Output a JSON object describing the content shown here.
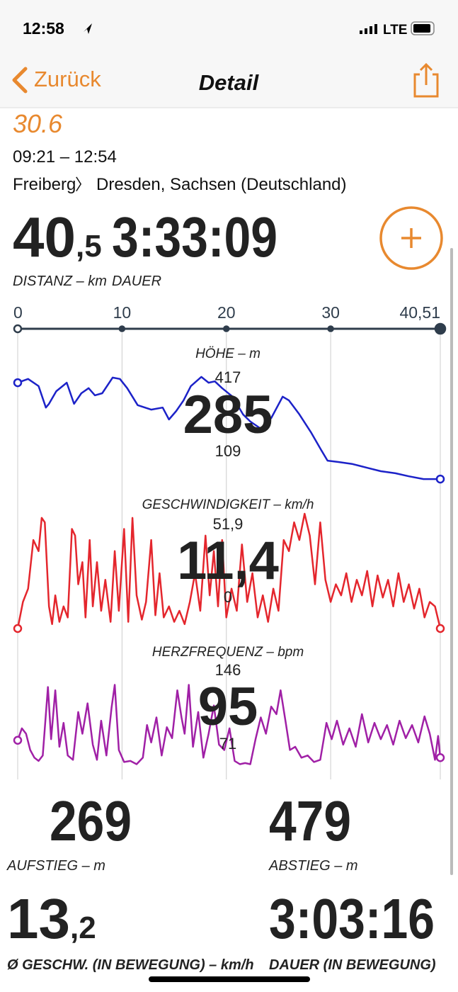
{
  "status_bar": {
    "time": "12:58",
    "network": "LTE"
  },
  "nav": {
    "back": "Zurück",
    "title": "Detail"
  },
  "header": {
    "date": "30.6",
    "time_range": "09:21 – 12:54",
    "route_from": "Freiberg",
    "route_separator": "〉",
    "route_to": "Dresden, Sachsen (Deutschland)"
  },
  "summary": {
    "distance": {
      "value": "40,5",
      "label": "DISTANZ – km"
    },
    "duration": {
      "value": "3:33:09",
      "label": "DAUER"
    }
  },
  "chart_axis": {
    "xlim": [
      0,
      40.51
    ],
    "xticks": [
      0,
      10,
      20,
      30,
      {
        "value": 40.51,
        "label": "40,51"
      }
    ]
  },
  "chart_data": [
    {
      "type": "line",
      "title": "HÖHE – m",
      "color": "#1c22c8",
      "ylim": [
        109,
        417
      ],
      "max": 417,
      "avg": 285,
      "min": 109,
      "x": [
        0,
        1.0,
        2.0,
        2.7,
        3.0,
        3.7,
        4.7,
        5.4,
        6.1,
        6.8,
        7.4,
        8.1,
        9.1,
        9.8,
        10.5,
        11.5,
        12.2,
        12.8,
        13.9,
        14.5,
        15.2,
        15.9,
        16.6,
        17.6,
        18.3,
        18.9,
        19.6,
        20.6,
        21.6,
        22.3,
        23.3,
        24.3,
        25.4,
        26.0,
        27.0,
        28.1,
        29.1,
        29.7,
        30.8,
        32.1,
        33.5,
        34.8,
        36.2,
        37.5,
        38.9,
        40.51
      ],
      "values": [
        396,
        407,
        386,
        323,
        334,
        371,
        396,
        334,
        365,
        380,
        359,
        365,
        411,
        407,
        380,
        330,
        323,
        317,
        323,
        288,
        313,
        344,
        386,
        413,
        396,
        400,
        380,
        355,
        303,
        282,
        261,
        292,
        355,
        344,
        303,
        251,
        198,
        167,
        163,
        157,
        146,
        136,
        130,
        121,
        113,
        113
      ]
    },
    {
      "type": "line",
      "title": "GESCHWINDIGKEIT – km/h",
      "color": "#e4262d",
      "ylim": [
        0,
        51.9
      ],
      "max": {
        "value": 51.9,
        "label": "51,9"
      },
      "avg": {
        "value": 11.4,
        "label": "11,4"
      },
      "min": 0,
      "x": [
        0,
        0.5,
        1.0,
        1.5,
        2.0,
        2.3,
        2.6,
        3.0,
        3.3,
        3.6,
        4.0,
        4.4,
        4.8,
        5.2,
        5.5,
        5.8,
        6.2,
        6.5,
        6.9,
        7.2,
        7.6,
        8.0,
        8.4,
        8.9,
        9.3,
        9.7,
        10.2,
        10.6,
        11.0,
        11.4,
        11.9,
        12.3,
        12.8,
        13.2,
        13.6,
        14.0,
        14.5,
        15.0,
        15.5,
        16.0,
        16.5,
        17.0,
        17.5,
        18.0,
        18.4,
        18.8,
        19.2,
        19.6,
        20.0,
        20.5,
        21.0,
        21.5,
        22.0,
        22.5,
        23.0,
        23.5,
        24.0,
        24.5,
        25.0,
        25.5,
        26.0,
        26.5,
        27.0,
        27.5,
        28.0,
        28.5,
        29.0,
        29.5,
        30.0,
        30.5,
        31.0,
        31.5,
        32.0,
        32.5,
        33.0,
        33.5,
        34.0,
        34.5,
        35.0,
        35.5,
        36.0,
        36.5,
        37.0,
        37.5,
        38.0,
        38.5,
        39.0,
        39.5,
        40.0,
        40.51
      ],
      "values": [
        0,
        12,
        18,
        40,
        35,
        50,
        48,
        10,
        2,
        15,
        3,
        10,
        5,
        45,
        42,
        20,
        30,
        5,
        40,
        10,
        30,
        8,
        22,
        3,
        35,
        8,
        45,
        3,
        50,
        15,
        4,
        12,
        40,
        6,
        25,
        5,
        10,
        3,
        8,
        2,
        12,
        25,
        8,
        42,
        15,
        35,
        10,
        40,
        5,
        18,
        8,
        38,
        12,
        25,
        5,
        15,
        3,
        18,
        8,
        40,
        35,
        48,
        40,
        51.9,
        42,
        20,
        48,
        22,
        12,
        20,
        15,
        25,
        12,
        22,
        15,
        26,
        10,
        24,
        14,
        22,
        10,
        25,
        12,
        20,
        9,
        18,
        5,
        12,
        10,
        0
      ]
    },
    {
      "type": "line",
      "title": "HERZFREQUENZ – bpm",
      "color": "#a020a6",
      "ylim": [
        71,
        146
      ],
      "max": 146,
      "avg": 95,
      "min": 71,
      "x": [
        0,
        0.4,
        0.8,
        1.2,
        1.6,
        2.0,
        2.4,
        2.9,
        3.2,
        3.6,
        4.0,
        4.4,
        4.8,
        5.3,
        5.8,
        6.2,
        6.7,
        7.2,
        7.6,
        8.0,
        8.5,
        9.0,
        9.3,
        9.7,
        10.2,
        10.8,
        11.4,
        12.0,
        12.4,
        12.8,
        13.3,
        13.8,
        14.3,
        14.8,
        15.3,
        15.7,
        16.0,
        16.4,
        16.8,
        17.3,
        17.8,
        18.3,
        18.8,
        19.3,
        19.8,
        20.3,
        20.8,
        21.3,
        21.8,
        22.3,
        22.8,
        23.3,
        23.8,
        24.3,
        24.8,
        25.2,
        25.7,
        26.1,
        26.6,
        27.2,
        27.8,
        28.4,
        29.0,
        29.6,
        30.1,
        30.6,
        31.2,
        31.8,
        32.4,
        33.0,
        33.6,
        34.2,
        34.8,
        35.4,
        36.0,
        36.6,
        37.2,
        37.8,
        38.4,
        39.0,
        39.5,
        40.0,
        40.3,
        40.51
      ],
      "values": [
        94,
        105,
        100,
        85,
        78,
        75,
        80,
        143,
        95,
        140,
        88,
        110,
        80,
        76,
        120,
        100,
        128,
        90,
        76,
        112,
        80,
        124,
        145,
        85,
        74,
        75,
        72,
        78,
        108,
        92,
        115,
        80,
        106,
        96,
        140,
        115,
        100,
        145,
        88,
        120,
        78,
        100,
        126,
        90,
        85,
        105,
        75,
        72,
        73,
        72,
        95,
        115,
        100,
        125,
        118,
        140,
        110,
        85,
        88,
        78,
        80,
        74,
        76,
        110,
        95,
        112,
        90,
        105,
        88,
        118,
        92,
        110,
        95,
        108,
        90,
        112,
        96,
        108,
        92,
        116,
        100,
        76,
        98,
        78
      ]
    }
  ],
  "stats": [
    {
      "value": "269",
      "label": "AUFSTIEG – m"
    },
    {
      "value": "479",
      "label": "ABSTIEG – m"
    },
    {
      "value": "13,2",
      "label": "Ø GESCHW. (IN BEWEGUNG) – km/h"
    },
    {
      "value": "3:03:16",
      "label": "DAUER (IN BEWEGUNG)"
    }
  ]
}
